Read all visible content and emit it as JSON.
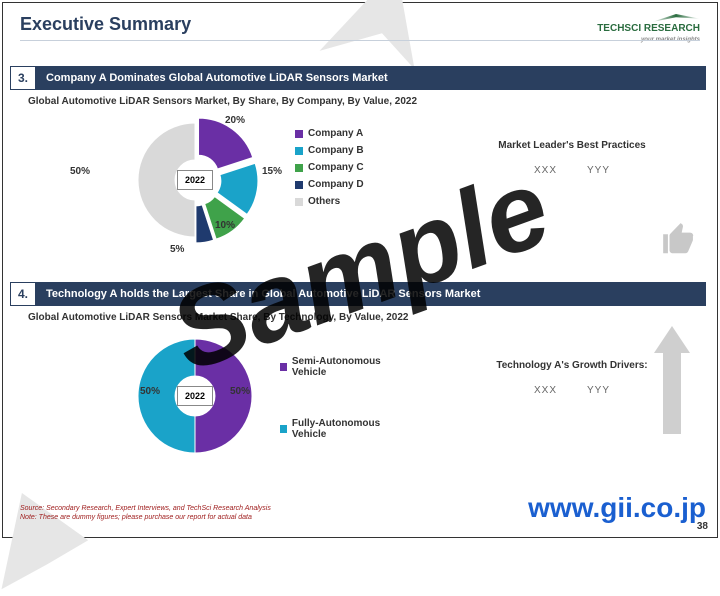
{
  "title": "Executive Summary",
  "logo": {
    "brand": "TECHSCI RESEARCH",
    "tag": "...your market insights"
  },
  "watermark": {
    "sample": "Sample",
    "url": "www.gii.co.jp"
  },
  "footer": {
    "line1": "Source: Secondary Research, Expert Interviews, and TechSci Research Analysis",
    "line2": "Note: These are dummy figures; please purchase our report for actual data"
  },
  "page_number": "38",
  "section3": {
    "number": "3.",
    "headline": "Company A Dominates Global Automotive LiDAR Sensors Market",
    "subtitle": "Global Automotive LiDAR Sensors Market, By Share, By Company, By Value, 2022",
    "center_year": "2022",
    "pie": {
      "type": "donut-exploded",
      "slices": [
        {
          "label": "Company A",
          "value": 20,
          "color": "#6a2fa5",
          "explode": true
        },
        {
          "label": "Company B",
          "value": 15,
          "color": "#1aa3c9",
          "explode": true
        },
        {
          "label": "Company C",
          "value": 10,
          "color": "#3fa24a",
          "explode": true
        },
        {
          "label": "Company D",
          "value": 5,
          "color": "#1f3a6e",
          "explode": true
        },
        {
          "label": "Others",
          "value": 50,
          "color": "#d9d9d9",
          "explode": false
        }
      ],
      "label_fontsize": 10,
      "label_fontweight": "bold",
      "inner_radius": 0.35
    },
    "right_panel": {
      "title": "Market Leader's Best Practices",
      "val1": "XXX",
      "val2": "YYY"
    }
  },
  "section4": {
    "number": "4.",
    "headline": "Technology A holds the Largest Share in Global Automotive LiDAR Sensors Market",
    "subtitle": "Global Automotive LiDAR Sensors Market Share, By Technology, By Value, 2022",
    "center_year": "2022",
    "pie": {
      "type": "donut",
      "slices": [
        {
          "label": "Semi-Autonomous Vehicle",
          "value": 50,
          "color": "#6a2fa5"
        },
        {
          "label": "Fully-Autonomous Vehicle",
          "value": 50,
          "color": "#1aa3c9"
        }
      ],
      "label_fontsize": 10,
      "label_fontweight": "bold",
      "inner_radius": 0.35
    },
    "right_panel": {
      "title": "Technology A's Growth Drivers:",
      "val1": "XXX",
      "val2": "YYY"
    }
  },
  "colors": {
    "heading": "#2a3f5f",
    "bar_bg": "#2a3f5f",
    "bar_text": "#ffffff",
    "footer_text": "#a02020",
    "url_text": "#1a5fd0",
    "background": "#ffffff"
  }
}
